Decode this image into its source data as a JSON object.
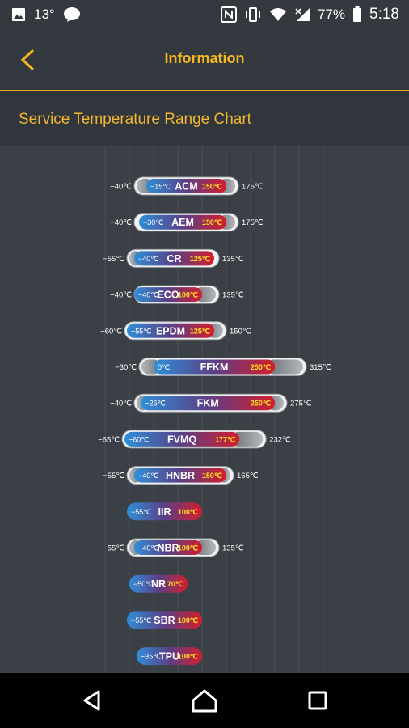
{
  "status_bar": {
    "temperature": "13°",
    "battery": "77%",
    "time": "5:18"
  },
  "header": {
    "title": "Information",
    "accent_color": "#f6b81d"
  },
  "section": {
    "title": "Service Temperature Range Chart"
  },
  "chart_data": {
    "type": "range-bar",
    "unit": "℃",
    "colors": {
      "min_end": "#2f8fd8",
      "mid": "#5b3f86",
      "max_end": "#d51d2c",
      "fade": "#b5b9bd"
    },
    "rows": [
      {
        "name": "ACM",
        "intermittent_min": -40,
        "continuous_min": -15,
        "continuous_max": 150,
        "intermittent_max": 175,
        "labels": {
          "ext_min": "−40℃",
          "cont_min": "−15℃",
          "cont_max": "150℃",
          "ext_max": "175℃"
        }
      },
      {
        "name": "AEM",
        "intermittent_min": -40,
        "continuous_min": -30,
        "continuous_max": 150,
        "intermittent_max": 175,
        "labels": {
          "ext_min": "−40℃",
          "cont_min": "−30℃",
          "cont_max": "150℃",
          "ext_max": "175℃"
        }
      },
      {
        "name": "CR",
        "intermittent_min": -55,
        "continuous_min": -40,
        "continuous_max": 125,
        "intermittent_max": 135,
        "labels": {
          "ext_min": "−55℃",
          "cont_min": "−40℃",
          "cont_max": "125℃",
          "ext_max": "135℃"
        }
      },
      {
        "name": "ECO",
        "intermittent_min": -40,
        "continuous_min": -40,
        "continuous_max": 100,
        "intermittent_max": 135,
        "labels": {
          "ext_min": "−40℃",
          "cont_min": "−40℃",
          "cont_max": "100℃",
          "ext_max": "135℃"
        }
      },
      {
        "name": "EPDM",
        "intermittent_min": -60,
        "continuous_min": -55,
        "continuous_max": 125,
        "intermittent_max": 150,
        "labels": {
          "ext_min": "−60℃",
          "cont_min": "−55℃",
          "cont_max": "125℃",
          "ext_max": "150℃"
        }
      },
      {
        "name": "FFKM",
        "intermittent_min": -30,
        "continuous_min": 0,
        "continuous_max": 250,
        "intermittent_max": 315,
        "labels": {
          "ext_min": "−30℃",
          "cont_min": "0℃",
          "cont_max": "250℃",
          "ext_max": "315℃"
        }
      },
      {
        "name": "FKM",
        "intermittent_min": -40,
        "continuous_min": -26,
        "continuous_max": 250,
        "intermittent_max": 275,
        "labels": {
          "ext_min": "−40℃",
          "cont_min": "−26℃",
          "cont_max": "250℃",
          "ext_max": "275℃"
        }
      },
      {
        "name": "FVMQ",
        "intermittent_min": -65,
        "continuous_min": -60,
        "continuous_max": 177,
        "intermittent_max": 232,
        "labels": {
          "ext_min": "−65℃",
          "cont_min": "−60℃",
          "cont_max": "177℃",
          "ext_max": "232℃"
        }
      },
      {
        "name": "HNBR",
        "intermittent_min": -55,
        "continuous_min": -40,
        "continuous_max": 150,
        "intermittent_max": 165,
        "labels": {
          "ext_min": "−55℃",
          "cont_min": "−40℃",
          "cont_max": "150℃",
          "ext_max": "165℃"
        }
      },
      {
        "name": "IIR",
        "intermittent_min": null,
        "continuous_min": -55,
        "continuous_max": 100,
        "intermittent_max": null,
        "labels": {
          "ext_min": "",
          "cont_min": "−55℃",
          "cont_max": "100℃",
          "ext_max": ""
        }
      },
      {
        "name": "NBR",
        "intermittent_min": -55,
        "continuous_min": -40,
        "continuous_max": 100,
        "intermittent_max": 135,
        "labels": {
          "ext_min": "−55℃",
          "cont_min": "−40℃",
          "cont_max": "100℃",
          "ext_max": "135℃"
        }
      },
      {
        "name": "NR",
        "intermittent_min": null,
        "continuous_min": -50,
        "continuous_max": 70,
        "intermittent_max": null,
        "labels": {
          "ext_min": "",
          "cont_min": "−50℃",
          "cont_max": "70℃",
          "ext_max": ""
        }
      },
      {
        "name": "SBR",
        "intermittent_min": null,
        "continuous_min": -55,
        "continuous_max": 100,
        "intermittent_max": null,
        "labels": {
          "ext_min": "",
          "cont_min": "−55℃",
          "cont_max": "100℃",
          "ext_max": ""
        }
      },
      {
        "name": "TPU",
        "intermittent_min": null,
        "continuous_min": -35,
        "continuous_max": 100,
        "intermittent_max": null,
        "labels": {
          "ext_min": "",
          "cont_min": "−35℃",
          "cont_max": "100℃",
          "ext_max": ""
        }
      }
    ]
  },
  "nav": {
    "back_icon": "triangle-back-icon",
    "home_icon": "circle-home-icon",
    "recents_icon": "square-recents-icon"
  }
}
